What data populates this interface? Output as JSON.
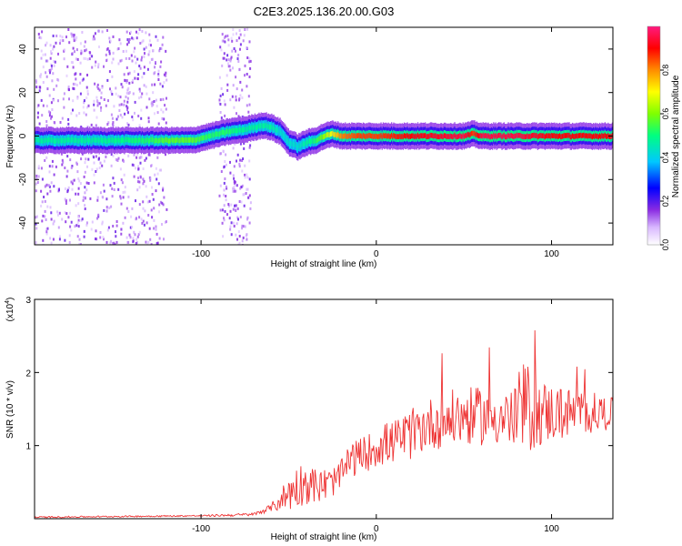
{
  "title": "C2E3.2025.136.20.00.G03",
  "chart_data": [
    {
      "type": "heatmap",
      "xlabel": "Height of straight line (km)",
      "ylabel": "Frequency (Hz)",
      "xlim": [
        -195,
        135
      ],
      "ylim": [
        -50,
        50
      ],
      "xticks": [
        -100,
        0,
        100
      ],
      "yticks": [
        -40,
        -20,
        0,
        20,
        40
      ],
      "ytick_labels": [
        "-40",
        "-20",
        "0",
        "20",
        "40"
      ],
      "colorbar": {
        "label": "Normalized spectral amplitude",
        "range": [
          0,
          1
        ],
        "ticks": [
          0.0,
          0.2,
          0.4,
          0.6,
          0.8
        ],
        "tick_labels": [
          "0.0",
          "0.2",
          "0.4",
          "0.6",
          "0.8"
        ]
      },
      "ridge": {
        "x": [
          -195,
          -160,
          -130,
          -120,
          -105,
          -95,
          -85,
          -75,
          -65,
          -60,
          -55,
          -50,
          -45,
          -40,
          -35,
          -30,
          -25,
          -20,
          -10,
          0,
          20,
          50,
          55,
          60,
          80,
          100,
          135
        ],
        "freq": [
          -2,
          -2,
          -2,
          -2,
          -2,
          0,
          2,
          3,
          5,
          4,
          2,
          -3,
          -5,
          -3,
          -2,
          0,
          1,
          0,
          0,
          0,
          0,
          0,
          1,
          0,
          0,
          0,
          0
        ],
        "peak_amplitude": [
          0.5,
          0.5,
          0.55,
          0.6,
          0.6,
          0.55,
          0.55,
          0.5,
          0.5,
          0.5,
          0.45,
          0.45,
          0.45,
          0.5,
          0.55,
          0.65,
          0.75,
          0.85,
          0.9,
          0.9,
          0.95,
          1.0,
          0.9,
          1.0,
          1.0,
          0.95,
          0.95
        ]
      },
      "background_noise_bands_km": [
        [
          -195,
          -120
        ],
        [
          -90,
          -72
        ]
      ]
    },
    {
      "type": "line",
      "xlabel": "Height of straight line (km)",
      "ylabel": "SNR (10 * v/v)",
      "y_multiplier": "(x10^4)",
      "xlim": [
        -195,
        135
      ],
      "ylim": [
        0,
        3
      ],
      "xticks": [
        -100,
        0,
        100
      ],
      "yticks": [
        1,
        2,
        3
      ],
      "color": "#ee3333",
      "series": [
        {
          "x": [
            -195,
            -150,
            -100,
            -80,
            -70,
            -60,
            -50,
            -45,
            -40,
            -35,
            -30,
            -25,
            -20,
            -15,
            -10,
            -5,
            0,
            10,
            20,
            30,
            40,
            50,
            60,
            70,
            80,
            85,
            90,
            100,
            110,
            120,
            130,
            135
          ],
          "y": [
            0.02,
            0.03,
            0.04,
            0.05,
            0.06,
            0.15,
            0.35,
            0.45,
            0.5,
            0.45,
            0.45,
            0.5,
            0.6,
            0.8,
            0.85,
            0.9,
            1.0,
            1.05,
            1.15,
            1.3,
            1.35,
            1.4,
            1.4,
            1.4,
            1.35,
            1.5,
            1.45,
            1.45,
            1.45,
            1.45,
            1.45,
            1.45
          ],
          "spread": [
            0.01,
            0.01,
            0.01,
            0.02,
            0.02,
            0.05,
            0.25,
            0.3,
            0.3,
            0.25,
            0.25,
            0.2,
            0.2,
            0.25,
            0.25,
            0.25,
            0.3,
            0.3,
            0.35,
            0.35,
            0.4,
            0.4,
            0.4,
            0.4,
            0.45,
            0.7,
            0.5,
            0.4,
            0.35,
            0.3,
            0.25,
            0.2
          ]
        }
      ]
    }
  ]
}
